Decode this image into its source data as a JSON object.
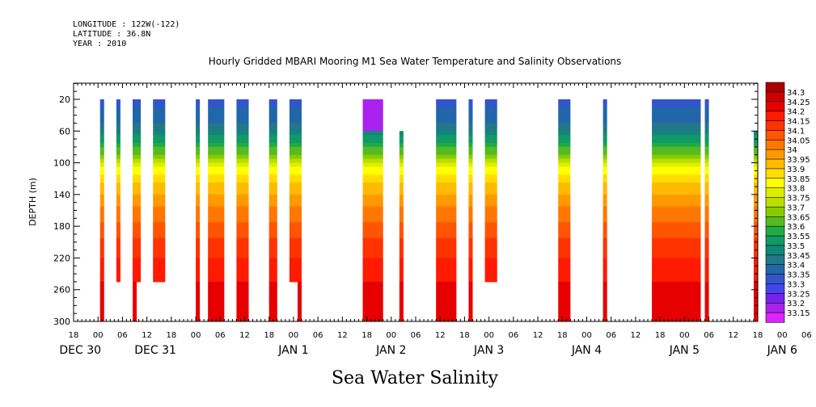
{
  "header": {
    "longitude": "LONGITUDE : 122W(-122)",
    "latitude": "LATITUDE : 36.8N",
    "year": "YEAR : 2010"
  },
  "chart_data": {
    "type": "heatmap",
    "title": "Hourly Gridded MBARI Mooring M1 Sea Water Temperature and Salinity Observations",
    "subtitle": "Sea Water Salinity",
    "ylabel": "DEPTH (m)",
    "xlabel": "",
    "ylim": [
      300,
      0
    ],
    "y_ticks": [
      20,
      60,
      100,
      140,
      180,
      220,
      260,
      300
    ],
    "x_hour_ticks": [
      "18",
      "00",
      "06",
      "12",
      "18",
      "00",
      "06",
      "12",
      "18",
      "00",
      "06",
      "12",
      "18",
      "00",
      "06",
      "12",
      "18",
      "00",
      "06",
      "12",
      "18",
      "00",
      "06",
      "12",
      "18",
      "00",
      "06",
      "12",
      "18",
      "00",
      "06",
      "12",
      "18",
      "00",
      "06",
      "12",
      "18"
    ],
    "x_day_labels": [
      "DEC 30",
      "DEC 31",
      "JAN  1",
      "JAN  2",
      "JAN  3",
      "JAN  4",
      "JAN  5",
      "JAN  6"
    ],
    "x_range_hours": [
      -6,
      162
    ],
    "colorbar": {
      "levels": [
        34.3,
        34.25,
        34.2,
        34.15,
        34.1,
        34.05,
        34,
        33.95,
        33.9,
        33.85,
        33.8,
        33.75,
        33.7,
        33.65,
        33.6,
        33.55,
        33.5,
        33.45,
        33.4,
        33.35,
        33.3,
        33.25,
        33.2,
        33.15
      ],
      "colors": [
        "#aa0000",
        "#cc0000",
        "#e60000",
        "#ff1a00",
        "#ff3300",
        "#ff5500",
        "#ff7700",
        "#ff9900",
        "#ffbb00",
        "#ffdd00",
        "#ffff00",
        "#ddee00",
        "#bbdd00",
        "#88cc00",
        "#55bb22",
        "#22aa44",
        "#119966",
        "#118877",
        "#227788",
        "#2266aa",
        "#3355cc",
        "#4444ee",
        "#7722ee",
        "#aa22ee",
        "#dd22ff"
      ]
    },
    "profile": [
      {
        "depth": 20,
        "salinity": 33.32
      },
      {
        "depth": 50,
        "salinity": 33.4
      },
      {
        "depth": 80,
        "salinity": 33.58
      },
      {
        "depth": 110,
        "salinity": 33.82
      },
      {
        "depth": 140,
        "salinity": 33.96
      },
      {
        "depth": 180,
        "salinity": 34.07
      },
      {
        "depth": 220,
        "salinity": 34.15
      },
      {
        "depth": 260,
        "salinity": 34.22
      },
      {
        "depth": 300,
        "salinity": 34.25
      }
    ],
    "series": [
      {
        "start_hour": 0.5,
        "end_hour": 1.5,
        "top_depth": 20,
        "bottom_depth": 300
      },
      {
        "start_hour": 4.5,
        "end_hour": 5.5,
        "top_depth": 20,
        "bottom_depth": 250
      },
      {
        "start_hour": 8.5,
        "end_hour": 10.5,
        "top_depth": 20,
        "bottom_depth": 250
      },
      {
        "start_hour": 8.5,
        "end_hour": 9.5,
        "top_depth": 250,
        "bottom_depth": 300
      },
      {
        "start_hour": 13.5,
        "end_hour": 16.5,
        "top_depth": 20,
        "bottom_depth": 250
      },
      {
        "start_hour": 24,
        "end_hour": 25,
        "top_depth": 20,
        "bottom_depth": 300
      },
      {
        "start_hour": 27,
        "end_hour": 31,
        "top_depth": 20,
        "bottom_depth": 300
      },
      {
        "start_hour": 34,
        "end_hour": 37,
        "top_depth": 20,
        "bottom_depth": 300
      },
      {
        "start_hour": 42,
        "end_hour": 44,
        "top_depth": 20,
        "bottom_depth": 300
      },
      {
        "start_hour": 47,
        "end_hour": 50,
        "top_depth": 20,
        "bottom_depth": 250
      },
      {
        "start_hour": 49,
        "end_hour": 50,
        "top_depth": 250,
        "bottom_depth": 300
      },
      {
        "start_hour": 65,
        "end_hour": 70,
        "top_depth": 20,
        "bottom_depth": 300,
        "surface": 33.15
      },
      {
        "start_hour": 74,
        "end_hour": 75,
        "top_depth": 60,
        "bottom_depth": 300
      },
      {
        "start_hour": 83,
        "end_hour": 88,
        "top_depth": 20,
        "bottom_depth": 300
      },
      {
        "start_hour": 91,
        "end_hour": 92,
        "top_depth": 20,
        "bottom_depth": 300
      },
      {
        "start_hour": 95,
        "end_hour": 98,
        "top_depth": 20,
        "bottom_depth": 250
      },
      {
        "start_hour": 113,
        "end_hour": 116,
        "top_depth": 20,
        "bottom_depth": 300
      },
      {
        "start_hour": 124,
        "end_hour": 125,
        "top_depth": 20,
        "bottom_depth": 300
      },
      {
        "start_hour": 136,
        "end_hour": 148,
        "top_depth": 20,
        "bottom_depth": 300
      },
      {
        "start_hour": 149,
        "end_hour": 150,
        "top_depth": 20,
        "bottom_depth": 300
      },
      {
        "start_hour": 161,
        "end_hour": 162,
        "top_depth": 60,
        "bottom_depth": 300
      }
    ]
  }
}
